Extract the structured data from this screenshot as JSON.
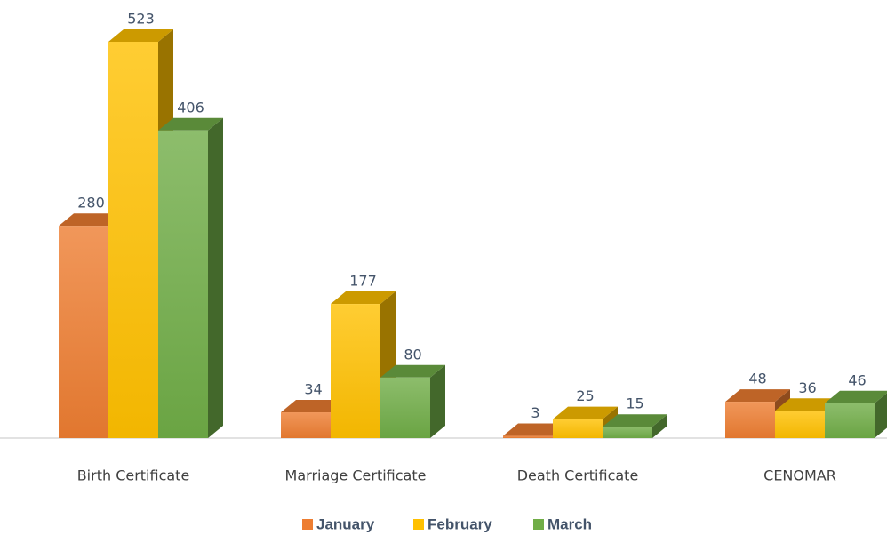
{
  "chart_data": {
    "type": "bar3d",
    "categories": [
      "Birth Certificate",
      "Marriage Certificate",
      "Death Certificate",
      "CENOMAR"
    ],
    "series": [
      {
        "name": "January",
        "color": "#ED7D31",
        "values": [
          280,
          34,
          3,
          48
        ]
      },
      {
        "name": "February",
        "color": "#FFC000",
        "values": [
          523,
          177,
          25,
          36
        ]
      },
      {
        "name": "March",
        "color": "#70AD47",
        "values": [
          406,
          80,
          15,
          46
        ]
      }
    ],
    "legend": "bottom"
  }
}
